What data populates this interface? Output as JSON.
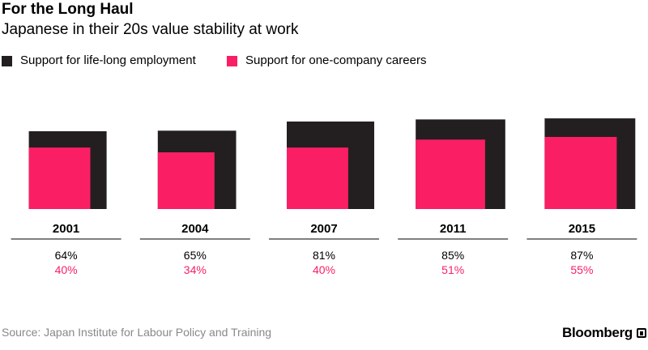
{
  "colors": {
    "series_lifelong": "#231f20",
    "series_onecompany": "#fa1e64",
    "text": "#000000",
    "source_text": "#888888",
    "divider": "#000000"
  },
  "header": {
    "title": "For the Long Haul",
    "subtitle": "Japanese in their 20s value stability at work"
  },
  "footer": {
    "source": "Source: Japan Institute for Labour Policy and Training",
    "brand": "Bloomberg"
  },
  "chart_data": {
    "type": "nested-square",
    "title": "For the Long Haul",
    "subtitle": "Japanese in their 20s value stability at work",
    "categories": [
      "2001",
      "2004",
      "2007",
      "2011",
      "2015"
    ],
    "series": [
      {
        "name": "Support for life-long employment",
        "color": "#231f20",
        "values": [
          64,
          65,
          81,
          85,
          87
        ],
        "labels": [
          "64%",
          "65%",
          "81%",
          "85%",
          "87%"
        ]
      },
      {
        "name": "Support for one-company careers",
        "color": "#fa1e64",
        "values": [
          40,
          34,
          40,
          51,
          55
        ],
        "labels": [
          "40%",
          "34%",
          "40%",
          "51%",
          "55%"
        ]
      }
    ],
    "unit": "%",
    "encoding": "square area proportional to value",
    "legend_position": "top-left"
  }
}
